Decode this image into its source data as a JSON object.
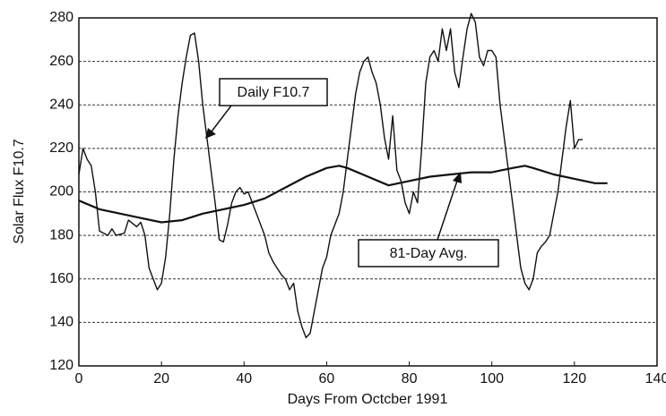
{
  "chart_data": {
    "type": "line",
    "xlabel": "Days From Octcber 1991",
    "ylabel": "Solar Flux F10.7",
    "annotations": [
      "Daily F10.7",
      "81-Day Avg."
    ],
    "xlim": [
      0,
      140
    ],
    "xticks": [
      0,
      20,
      40,
      60,
      80,
      100,
      120,
      140
    ],
    "ylim": [
      120,
      280
    ],
    "yticks": [
      120,
      140,
      160,
      180,
      200,
      220,
      240,
      260,
      280
    ],
    "grid": true,
    "series": [
      {
        "name": "Daily F10.7",
        "color": "#111111",
        "x": [
          0,
          1,
          2,
          3,
          4,
          5,
          7,
          8,
          9,
          11,
          12,
          14,
          15,
          16,
          17,
          19,
          20,
          21,
          22,
          23,
          24,
          25,
          26,
          27,
          28,
          29,
          30,
          31,
          32,
          33,
          34,
          35,
          36,
          37,
          38,
          39,
          40,
          41,
          42,
          43,
          44,
          45,
          46,
          47,
          48,
          49,
          50,
          51,
          52,
          53,
          54,
          55,
          56,
          57,
          58,
          59,
          60,
          61,
          62,
          63,
          64,
          65,
          66,
          67,
          68,
          69,
          70,
          71,
          72,
          73,
          74,
          75,
          76,
          77,
          78,
          79,
          80,
          81,
          82,
          83,
          84,
          85,
          86,
          87,
          88,
          89,
          90,
          91,
          92,
          93,
          94,
          95,
          96,
          97,
          98,
          99,
          100,
          101,
          102,
          103,
          104,
          105,
          106,
          107,
          108,
          109,
          110,
          111,
          112,
          113,
          114,
          115,
          116,
          117,
          118,
          119,
          120,
          121,
          122
        ],
        "values": [
          208,
          220,
          215,
          212,
          200,
          182,
          180,
          183,
          180,
          181,
          187,
          184,
          186,
          180,
          165,
          155,
          158,
          170,
          190,
          215,
          235,
          250,
          262,
          272,
          273,
          260,
          240,
          225,
          210,
          195,
          178,
          177,
          185,
          195,
          200,
          202,
          199,
          200,
          195,
          190,
          185,
          180,
          172,
          168,
          165,
          162,
          160,
          155,
          158,
          145,
          138,
          133,
          135,
          145,
          155,
          165,
          170,
          180,
          185,
          190,
          200,
          215,
          230,
          245,
          255,
          260,
          262,
          255,
          250,
          240,
          225,
          215,
          235,
          210,
          205,
          195,
          190,
          200,
          195,
          220,
          250,
          262,
          265,
          260,
          275,
          265,
          275,
          255,
          248,
          262,
          275,
          282,
          278,
          262,
          258,
          265,
          265,
          262,
          240,
          225,
          210,
          195,
          180,
          165,
          158,
          155,
          160,
          172,
          175,
          177,
          180,
          190,
          200,
          215,
          230,
          242,
          220,
          224,
          224
        ]
      },
      {
        "name": "81-Day Avg.",
        "color": "#111111",
        "x": [
          0,
          5,
          10,
          15,
          20,
          25,
          30,
          35,
          40,
          45,
          50,
          55,
          60,
          63,
          65,
          70,
          75,
          80,
          85,
          90,
          95,
          100,
          105,
          108,
          110,
          115,
          120,
          125,
          128
        ],
        "values": [
          196,
          192,
          190,
          188,
          186,
          187,
          190,
          192,
          194,
          197,
          202,
          207,
          211,
          212,
          211,
          207,
          203,
          205,
          207,
          208,
          209,
          209,
          211,
          212,
          211,
          208,
          206,
          204,
          204
        ]
      }
    ]
  }
}
